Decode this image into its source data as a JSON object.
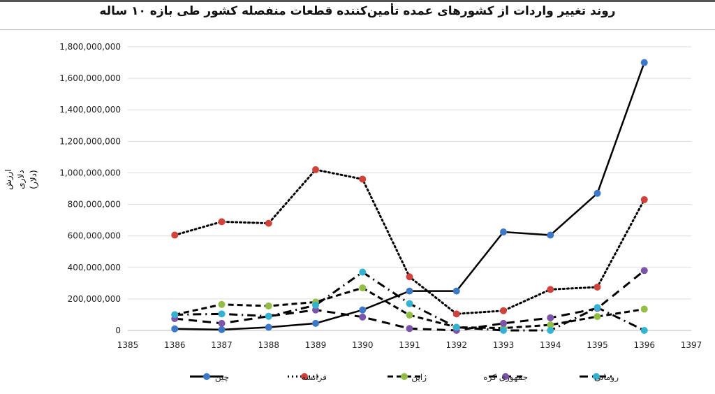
{
  "chart_data": {
    "type": "line",
    "title": "روند تغییر واردات از کشورهای عمده تأمین‌کننده قطعات منفصله کشور طی بازه ۱۰ ساله",
    "xlabel": "",
    "ylabel": "ارزش دلاری",
    "ylabel_unit": "(دلار)",
    "xlim": [
      1385,
      1397
    ],
    "ylim": [
      0,
      1800000000
    ],
    "x_ticks": [
      "1385",
      "1386",
      "1387",
      "1388",
      "1389",
      "1390",
      "1391",
      "1392",
      "1393",
      "1394",
      "1395",
      "1396",
      "1397"
    ],
    "y_ticks": [
      "0",
      "200,000,000",
      "400,000,000",
      "600,000,000",
      "800,000,000",
      "1,000,000,000",
      "1,200,000,000",
      "1,400,000,000",
      "1,600,000,000",
      "1,800,000,000"
    ],
    "x": [
      1386,
      1387,
      1388,
      1389,
      1390,
      1391,
      1392,
      1393,
      1394,
      1395,
      1396
    ],
    "grid": true,
    "legend_position": "bottom",
    "series": [
      {
        "name": "چین",
        "color": "#3d78c7",
        "dash": "solid",
        "values": [
          10000000,
          5000000,
          20000000,
          45000000,
          130000000,
          250000000,
          250000000,
          625000000,
          605000000,
          870000000,
          1700000000
        ]
      },
      {
        "name": "فرانسه",
        "color": "#d0433d",
        "dash": "dot",
        "values": [
          605000000,
          690000000,
          680000000,
          1020000000,
          960000000,
          340000000,
          105000000,
          125000000,
          260000000,
          275000000,
          830000000
        ]
      },
      {
        "name": "ژاپن",
        "color": "#93be45",
        "dash": "dash",
        "values": [
          100000000,
          165000000,
          155000000,
          180000000,
          270000000,
          97000000,
          20000000,
          15000000,
          35000000,
          88000000,
          135000000
        ]
      },
      {
        "name": "جمهوری کره",
        "color": "#7c55a8",
        "dash": "longdash",
        "values": [
          75000000,
          45000000,
          90000000,
          130000000,
          85000000,
          12000000,
          0,
          45000000,
          80000000,
          140000000,
          380000000
        ]
      },
      {
        "name": "رومانی",
        "color": "#34b2cf",
        "dash": "dashdot",
        "values": [
          100000000,
          105000000,
          90000000,
          160000000,
          370000000,
          170000000,
          20000000,
          0,
          0,
          145000000,
          0
        ]
      }
    ]
  }
}
